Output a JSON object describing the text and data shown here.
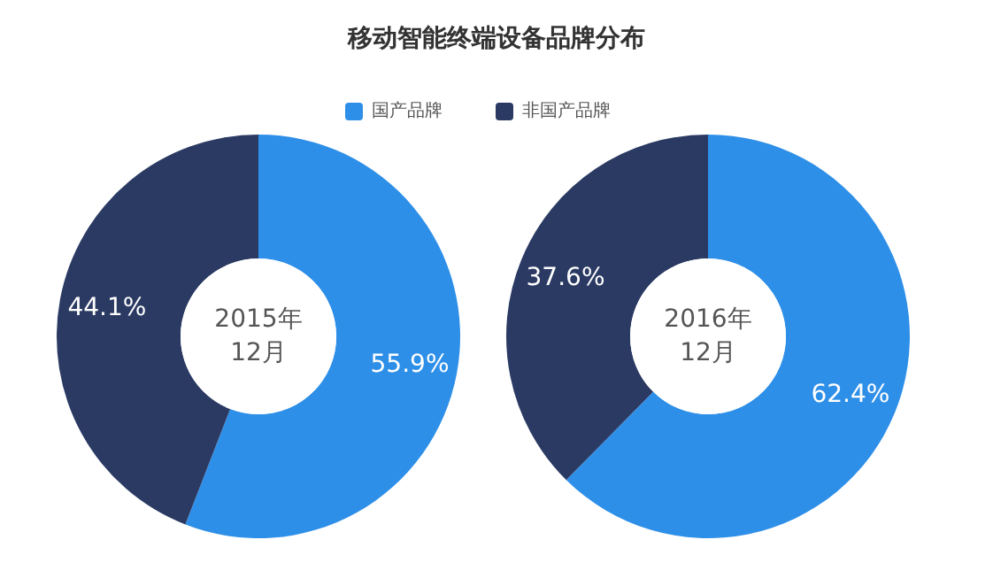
{
  "chart_data": [
    {
      "type": "donut",
      "title": "移动智能终端设备品牌分布",
      "categories": [
        "国产品牌",
        "非国产品牌"
      ],
      "values": [
        55.9,
        44.1
      ],
      "colors": [
        "#2e8fe8",
        "#2b3a63"
      ],
      "value_labels": [
        "55.9%",
        "44.1%"
      ],
      "legend": "top",
      "annotations": [
        "2015年\n12月"
      ]
    },
    {
      "type": "donut",
      "categories": [
        null,
        null
      ],
      "values": [
        62.4,
        37.6
      ],
      "colors": [
        "#2e8fe8",
        "#2b3a63"
      ],
      "value_labels": [
        "62.4%",
        "37.6%"
      ],
      "annotations": [
        "2016年\n12月"
      ]
    }
  ]
}
